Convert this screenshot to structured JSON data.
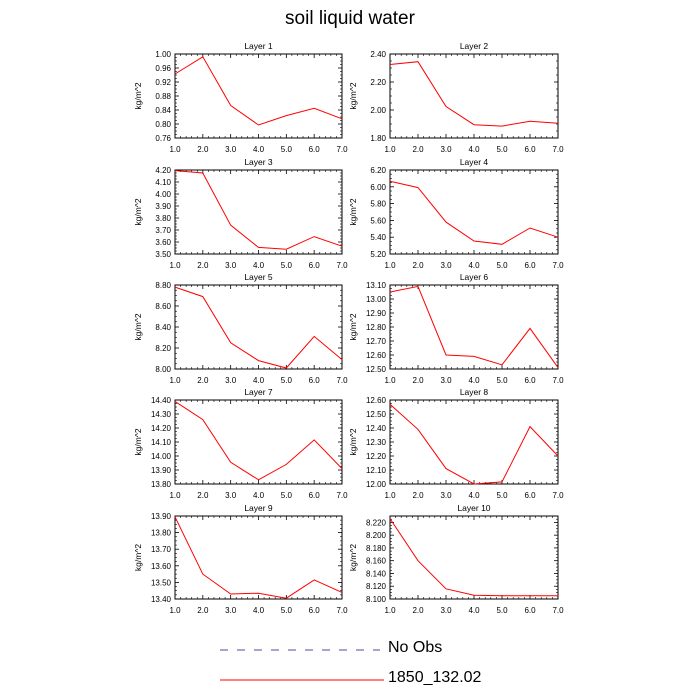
{
  "figure": {
    "title": "soil liquid water",
    "line_color": "#ff0000",
    "no_obs_color": "#4d4d99",
    "legend": [
      {
        "label": "No Obs",
        "style": "dashed"
      },
      {
        "label": "1850_132.02",
        "style": "solid"
      }
    ]
  },
  "chart_data": [
    {
      "type": "line",
      "title": "Layer 1",
      "ylabel": "kg/m^2",
      "x": [
        1,
        2,
        3,
        4,
        5,
        6,
        7
      ],
      "xlim": [
        1,
        7
      ],
      "xticks": [
        "1.0",
        "2.0",
        "3.0",
        "4.0",
        "5.0",
        "6.0",
        "7.0"
      ],
      "ylim": [
        0.76,
        1.0
      ],
      "yticks": [
        "0.76",
        "0.80",
        "0.84",
        "0.88",
        "0.92",
        "0.96",
        "1.00"
      ],
      "ytick_values": [
        0.76,
        0.8,
        0.84,
        0.88,
        0.92,
        0.96,
        1.0
      ],
      "series": [
        {
          "name": "1850_132.02",
          "values": [
            0.943,
            0.992,
            0.853,
            0.797,
            0.824,
            0.845,
            0.815
          ]
        }
      ]
    },
    {
      "type": "line",
      "title": "Layer 2",
      "ylabel": "kg/m^2",
      "x": [
        1,
        2,
        3,
        4,
        5,
        6,
        7
      ],
      "xlim": [
        1,
        7
      ],
      "xticks": [
        "1.0",
        "2.0",
        "3.0",
        "4.0",
        "5.0",
        "6.0",
        "7.0"
      ],
      "ylim": [
        1.8,
        2.4
      ],
      "yticks": [
        "1.80",
        "2.00",
        "2.20",
        "2.40"
      ],
      "ytick_values": [
        1.8,
        2.0,
        2.2,
        2.4
      ],
      "series": [
        {
          "name": "1850_132.02",
          "values": [
            2.325,
            2.345,
            2.025,
            1.895,
            1.885,
            1.92,
            1.905
          ]
        }
      ]
    },
    {
      "type": "line",
      "title": "Layer 3",
      "ylabel": "kg/m^2",
      "x": [
        1,
        2,
        3,
        4,
        5,
        6,
        7
      ],
      "xlim": [
        1,
        7
      ],
      "xticks": [
        "1.0",
        "2.0",
        "3.0",
        "4.0",
        "5.0",
        "6.0",
        "7.0"
      ],
      "ylim": [
        3.5,
        4.2
      ],
      "yticks": [
        "3.50",
        "3.60",
        "3.70",
        "3.80",
        "3.90",
        "4.00",
        "4.10",
        "4.20"
      ],
      "ytick_values": [
        3.5,
        3.6,
        3.7,
        3.8,
        3.9,
        4.0,
        4.1,
        4.2
      ],
      "series": [
        {
          "name": "1850_132.02",
          "values": [
            4.195,
            4.175,
            3.74,
            3.555,
            3.54,
            3.645,
            3.565
          ]
        }
      ]
    },
    {
      "type": "line",
      "title": "Layer 4",
      "ylabel": "kg/m^2",
      "x": [
        1,
        2,
        3,
        4,
        5,
        6,
        7
      ],
      "xlim": [
        1,
        7
      ],
      "xticks": [
        "1.0",
        "2.0",
        "3.0",
        "4.0",
        "5.0",
        "6.0",
        "7.0"
      ],
      "ylim": [
        5.2,
        6.2
      ],
      "yticks": [
        "5.20",
        "5.40",
        "5.60",
        "5.80",
        "6.00",
        "6.20"
      ],
      "ytick_values": [
        5.2,
        5.4,
        5.6,
        5.8,
        6.0,
        6.2
      ],
      "series": [
        {
          "name": "1850_132.02",
          "values": [
            6.065,
            5.99,
            5.58,
            5.355,
            5.315,
            5.51,
            5.4
          ]
        }
      ]
    },
    {
      "type": "line",
      "title": "Layer 5",
      "ylabel": "kg/m^2",
      "x": [
        1,
        2,
        3,
        4,
        5,
        6,
        7
      ],
      "xlim": [
        1,
        7
      ],
      "xticks": [
        "1.0",
        "2.0",
        "3.0",
        "4.0",
        "5.0",
        "6.0",
        "7.0"
      ],
      "ylim": [
        8.0,
        8.8
      ],
      "yticks": [
        "8.00",
        "8.20",
        "8.40",
        "8.60",
        "8.80"
      ],
      "ytick_values": [
        8.0,
        8.2,
        8.4,
        8.6,
        8.8
      ],
      "series": [
        {
          "name": "1850_132.02",
          "values": [
            8.78,
            8.69,
            8.25,
            8.08,
            8.01,
            8.31,
            8.09
          ]
        }
      ]
    },
    {
      "type": "line",
      "title": "Layer 6",
      "ylabel": "kg/m^2",
      "x": [
        1,
        2,
        3,
        4,
        5,
        6,
        7
      ],
      "xlim": [
        1,
        7
      ],
      "xticks": [
        "1.0",
        "2.0",
        "3.0",
        "4.0",
        "5.0",
        "6.0",
        "7.0"
      ],
      "ylim": [
        12.5,
        13.1
      ],
      "yticks": [
        "12.50",
        "12.60",
        "12.70",
        "12.80",
        "12.90",
        "13.00",
        "13.10"
      ],
      "ytick_values": [
        12.5,
        12.6,
        12.7,
        12.8,
        12.9,
        13.0,
        13.1
      ],
      "series": [
        {
          "name": "1850_132.02",
          "values": [
            13.05,
            13.09,
            12.6,
            12.59,
            12.53,
            12.79,
            12.51
          ]
        }
      ]
    },
    {
      "type": "line",
      "title": "Layer 7",
      "ylabel": "kg/m^2",
      "x": [
        1,
        2,
        3,
        4,
        5,
        6,
        7
      ],
      "xlim": [
        1,
        7
      ],
      "xticks": [
        "1.0",
        "2.0",
        "3.0",
        "4.0",
        "5.0",
        "6.0",
        "7.0"
      ],
      "ylim": [
        13.8,
        14.4
      ],
      "yticks": [
        "13.80",
        "13.90",
        "14.00",
        "14.10",
        "14.20",
        "14.30",
        "14.40"
      ],
      "ytick_values": [
        13.8,
        13.9,
        14.0,
        14.1,
        14.2,
        14.3,
        14.4
      ],
      "series": [
        {
          "name": "1850_132.02",
          "values": [
            14.39,
            14.26,
            13.955,
            13.83,
            13.94,
            14.115,
            13.91
          ]
        }
      ]
    },
    {
      "type": "line",
      "title": "Layer 8",
      "ylabel": "kg/m^2",
      "x": [
        1,
        2,
        3,
        4,
        5,
        6,
        7
      ],
      "xlim": [
        1,
        7
      ],
      "xticks": [
        "1.0",
        "2.0",
        "3.0",
        "4.0",
        "5.0",
        "6.0",
        "7.0"
      ],
      "ylim": [
        12.0,
        12.6
      ],
      "yticks": [
        "12.00",
        "12.10",
        "12.20",
        "12.30",
        "12.40",
        "12.50",
        "12.60"
      ],
      "ytick_values": [
        12.0,
        12.1,
        12.2,
        12.3,
        12.4,
        12.5,
        12.6
      ],
      "series": [
        {
          "name": "1850_132.02",
          "values": [
            12.57,
            12.39,
            12.11,
            12.0,
            12.015,
            12.41,
            12.2
          ]
        }
      ]
    },
    {
      "type": "line",
      "title": "Layer 9",
      "ylabel": "kg/m^2",
      "x": [
        1,
        2,
        3,
        4,
        5,
        6,
        7
      ],
      "xlim": [
        1,
        7
      ],
      "xticks": [
        "1.0",
        "2.0",
        "3.0",
        "4.0",
        "5.0",
        "6.0",
        "7.0"
      ],
      "ylim": [
        13.4,
        13.9
      ],
      "yticks": [
        "13.40",
        "13.50",
        "13.60",
        "13.70",
        "13.80",
        "13.90"
      ],
      "ytick_values": [
        13.4,
        13.5,
        13.6,
        13.7,
        13.8,
        13.9
      ],
      "series": [
        {
          "name": "1850_132.02",
          "values": [
            13.895,
            13.55,
            13.43,
            13.435,
            13.405,
            13.515,
            13.44
          ]
        }
      ]
    },
    {
      "type": "line",
      "title": "Layer 10",
      "ylabel": "kg/m^2",
      "x": [
        1,
        2,
        3,
        4,
        5,
        6,
        7
      ],
      "xlim": [
        1,
        7
      ],
      "xticks": [
        "1.0",
        "2.0",
        "3.0",
        "4.0",
        "5.0",
        "6.0",
        "7.0"
      ],
      "ylim": [
        8.1,
        8.23
      ],
      "yticks": [
        "8.100",
        "8.120",
        "8.140",
        "8.160",
        "8.180",
        "8.200",
        "8.220"
      ],
      "ytick_values": [
        8.1,
        8.12,
        8.14,
        8.16,
        8.18,
        8.2,
        8.22
      ],
      "series": [
        {
          "name": "1850_132.02",
          "values": [
            8.226,
            8.16,
            8.116,
            8.106,
            8.105,
            8.105,
            8.105
          ]
        }
      ]
    }
  ]
}
